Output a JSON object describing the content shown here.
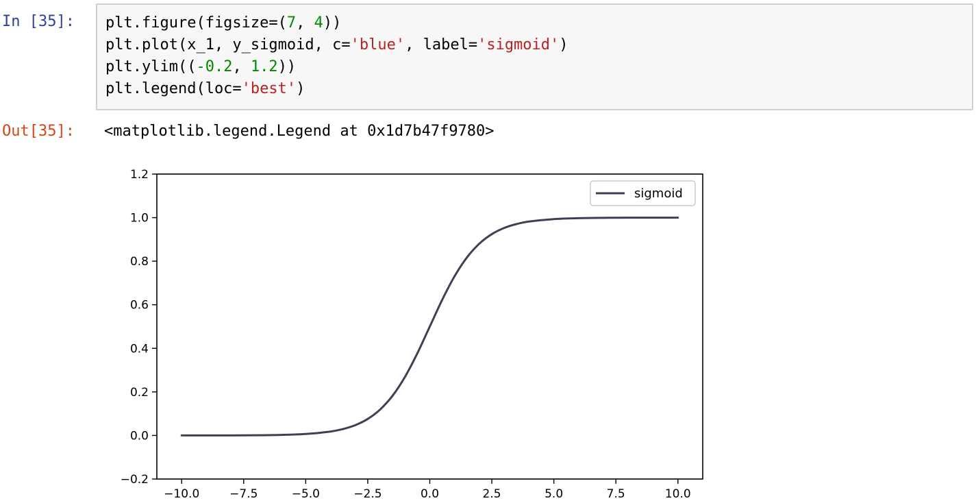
{
  "cell": {
    "in_prompt": "In [35]:",
    "out_prompt": "Out[35]:",
    "code_lines": [
      [
        {
          "t": "plt.figure(figsize=("
        },
        {
          "t": "7",
          "k": "num"
        },
        {
          "t": ", "
        },
        {
          "t": "4",
          "k": "num"
        },
        {
          "t": "))"
        }
      ],
      [
        {
          "t": "plt.plot(x_1, y_sigmoid, c="
        },
        {
          "t": "'blue'",
          "k": "str"
        },
        {
          "t": ", label="
        },
        {
          "t": "'sigmoid'",
          "k": "str"
        },
        {
          "t": ")"
        }
      ],
      [
        {
          "t": "plt.ylim(("
        },
        {
          "t": "-0.2",
          "k": "num"
        },
        {
          "t": ", "
        },
        {
          "t": "1.2",
          "k": "num"
        },
        {
          "t": "))"
        }
      ],
      [
        {
          "t": "plt.legend(loc="
        },
        {
          "t": "'best'",
          "k": "str"
        },
        {
          "t": ")"
        }
      ]
    ],
    "output_text": "<matplotlib.legend.Legend at 0x1d7b47f9780>"
  },
  "chart_data": {
    "type": "line",
    "title": "",
    "xlabel": "",
    "ylabel": "",
    "xlim": [
      -11,
      11
    ],
    "ylim": [
      -0.2,
      1.2
    ],
    "xticks": [
      -10.0,
      -7.5,
      -5.0,
      -2.5,
      0.0,
      2.5,
      5.0,
      7.5,
      10.0
    ],
    "xtick_labels": [
      "−10.0",
      "−7.5",
      "−5.0",
      "−2.5",
      "0.0",
      "2.5",
      "5.0",
      "7.5",
      "10.0"
    ],
    "yticks": [
      -0.2,
      0.0,
      0.2,
      0.4,
      0.6,
      0.8,
      1.0,
      1.2
    ],
    "ytick_labels": [
      "−0.2",
      "0.0",
      "0.2",
      "0.4",
      "0.6",
      "0.8",
      "1.0",
      "1.2"
    ],
    "grid": false,
    "legend_position": "top-right",
    "series": [
      {
        "name": "sigmoid",
        "color": "#404055",
        "x": [
          -10,
          -9,
          -8,
          -7,
          -6,
          -5,
          -4,
          -3.5,
          -3,
          -2.5,
          -2,
          -1.5,
          -1,
          -0.5,
          0,
          0.5,
          1,
          1.5,
          2,
          2.5,
          3,
          3.5,
          4,
          5,
          6,
          7,
          8,
          9,
          10
        ],
        "y": [
          4.54e-05,
          0.000123,
          0.000335,
          0.000911,
          0.00247,
          0.00669,
          0.018,
          0.0293,
          0.0474,
          0.0759,
          0.1192,
          0.1824,
          0.2689,
          0.3775,
          0.5,
          0.6225,
          0.7311,
          0.8176,
          0.8808,
          0.9241,
          0.9526,
          0.9707,
          0.982,
          0.9933,
          0.9975,
          0.9991,
          0.9997,
          0.9999,
          1.0
        ]
      }
    ]
  }
}
